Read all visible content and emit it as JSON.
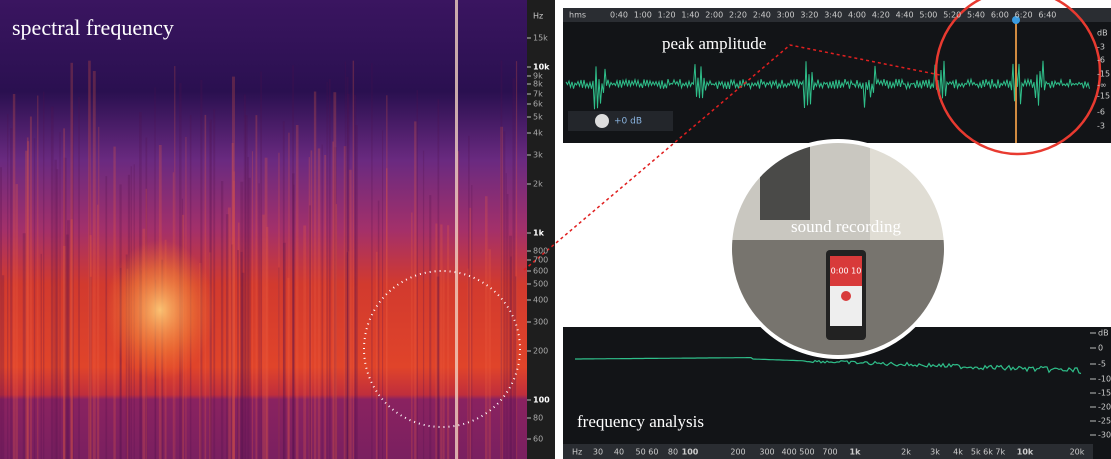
{
  "labels": {
    "spectral": "spectral frequency",
    "peak": "peak amplitude",
    "recording": "sound recording",
    "analysis": "frequency analysis"
  },
  "spectrogram": {
    "unit": "Hz",
    "ticks": [
      "15k",
      "10k",
      "9k",
      "8k",
      "7k",
      "6k",
      "5k",
      "4k",
      "3k",
      "2k",
      "1k",
      "800",
      "700",
      "600",
      "500",
      "400",
      "300",
      "200",
      "100",
      "80",
      "60"
    ]
  },
  "waveform": {
    "time_unit": "hms",
    "times": [
      "0:40",
      "1:00",
      "1:20",
      "1:40",
      "2:00",
      "2:20",
      "2:40",
      "3:00",
      "3:20",
      "3:40",
      "4:00",
      "4:20",
      "4:40",
      "5:00",
      "5:20",
      "5:40",
      "6:00",
      "6:20",
      "6:40"
    ],
    "db_labels": [
      "dB",
      "-3",
      "-6",
      "-15",
      "-∞",
      "-15",
      "-6",
      "-3"
    ],
    "gain": "+0 dB"
  },
  "phone": {
    "timer": "0:00 10"
  },
  "frequency_analysis": {
    "x_labels": [
      "Hz",
      "30",
      "40",
      "50 60",
      "80",
      "100",
      "200",
      "300",
      "400 500",
      "700",
      "1k",
      "2k",
      "3k",
      "4k",
      "5k 6k 7k",
      "10k",
      "20k"
    ],
    "y_labels": [
      "dB",
      "0",
      "-5",
      "-10",
      "-15",
      "-20",
      "-25",
      "-30"
    ]
  }
}
